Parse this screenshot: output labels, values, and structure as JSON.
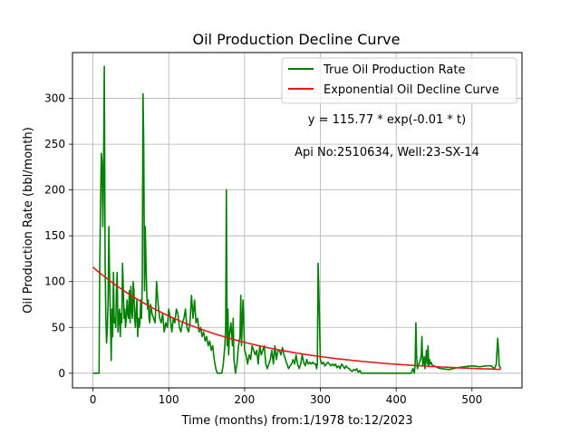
{
  "chart_data": {
    "type": "line",
    "title": "Oil Production Decline Curve",
    "xlabel": "Time (months) from:1/1978 to:12/2023",
    "ylabel": "Oil Production Rate (bbl/month)",
    "xlim": [
      -27,
      566
    ],
    "ylim": [
      -16,
      350
    ],
    "xticks": [
      0,
      100,
      200,
      300,
      400,
      500
    ],
    "yticks": [
      0,
      50,
      100,
      150,
      200,
      250,
      300
    ],
    "grid": true,
    "legend_position": "upper-right",
    "annotations": [
      "y = 115.77 * exp(-0.01 * t)",
      "Api No:2510634, Well:23-SX-14"
    ],
    "series": [
      {
        "name": "True Oil Production Rate",
        "color": "#008000",
        "x": [
          0,
          3,
          6,
          8,
          9,
          10,
          11,
          12,
          13,
          14,
          15,
          16,
          17,
          18,
          19,
          20,
          21,
          22,
          23,
          24,
          25,
          26,
          27,
          28,
          29,
          30,
          31,
          32,
          33,
          34,
          35,
          36,
          37,
          38,
          39,
          40,
          41,
          42,
          43,
          44,
          45,
          46,
          47,
          48,
          49,
          50,
          51,
          52,
          53,
          54,
          55,
          56,
          57,
          58,
          59,
          60,
          61,
          62,
          63,
          64,
          65,
          66,
          67,
          68,
          69,
          70,
          71,
          72,
          73,
          74,
          75,
          76,
          77,
          78,
          80,
          82,
          84,
          86,
          88,
          90,
          92,
          94,
          96,
          98,
          100,
          102,
          104,
          106,
          108,
          110,
          112,
          114,
          116,
          118,
          120,
          122,
          124,
          126,
          128,
          130,
          132,
          134,
          136,
          138,
          140,
          142,
          144,
          146,
          148,
          150,
          152,
          154,
          156,
          158,
          160,
          162,
          164,
          166,
          168,
          170,
          172,
          174,
          175,
          176,
          177,
          178,
          179,
          180,
          182,
          184,
          185,
          186,
          188,
          190,
          192,
          194,
          195,
          196,
          197,
          198,
          200,
          202,
          204,
          206,
          208,
          210,
          212,
          214,
          216,
          218,
          220,
          222,
          224,
          226,
          228,
          230,
          232,
          234,
          236,
          238,
          240,
          242,
          244,
          246,
          248,
          250,
          252,
          254,
          256,
          258,
          260,
          262,
          264,
          266,
          268,
          270,
          272,
          274,
          276,
          278,
          280,
          282,
          284,
          286,
          288,
          290,
          292,
          294,
          295,
          296,
          297,
          298,
          300,
          302,
          304,
          306,
          308,
          310,
          312,
          314,
          316,
          318,
          320,
          322,
          324,
          326,
          328,
          330,
          332,
          334,
          336,
          338,
          340,
          342,
          344,
          346,
          348,
          350,
          352,
          354,
          356,
          358,
          360,
          362,
          364,
          366,
          368,
          370,
          380,
          390,
          400,
          410,
          420,
          422,
          424,
          425,
          426,
          427,
          428,
          430,
          432,
          433,
          434,
          435,
          436,
          437,
          438,
          440,
          441,
          442,
          443,
          444,
          445,
          446,
          447,
          448,
          450,
          455,
          460,
          470,
          480,
          490,
          500,
          510,
          520,
          525,
          530,
          532,
          534,
          535,
          536,
          538
        ],
        "y": [
          0,
          0,
          0,
          0,
          120,
          180,
          240,
          230,
          160,
          225,
          335,
          120,
          60,
          33,
          50,
          80,
          160,
          100,
          60,
          14,
          70,
          40,
          110,
          55,
          60,
          50,
          90,
          110,
          45,
          60,
          70,
          40,
          65,
          55,
          120,
          95,
          60,
          70,
          50,
          60,
          80,
          65,
          60,
          90,
          55,
          95,
          70,
          60,
          100,
          90,
          60,
          50,
          70,
          80,
          40,
          60,
          50,
          55,
          80,
          60,
          100,
          305,
          250,
          90,
          160,
          120,
          85,
          70,
          80,
          60,
          55,
          75,
          70,
          65,
          60,
          55,
          100,
          75,
          60,
          55,
          65,
          45,
          55,
          50,
          70,
          60,
          45,
          60,
          55,
          70,
          65,
          50,
          45,
          55,
          60,
          70,
          50,
          45,
          55,
          85,
          60,
          80,
          55,
          60,
          45,
          50,
          40,
          45,
          35,
          40,
          30,
          35,
          25,
          30,
          15,
          5,
          0,
          0,
          0,
          0,
          10,
          30,
          50,
          200,
          30,
          70,
          20,
          40,
          55,
          30,
          60,
          15,
          0,
          10,
          30,
          40,
          85,
          30,
          60,
          80,
          25,
          20,
          10,
          20,
          15,
          30,
          25,
          20,
          25,
          10,
          30,
          20,
          25,
          30,
          10,
          5,
          10,
          15,
          25,
          10,
          30,
          15,
          25,
          25,
          20,
          28,
          20,
          15,
          10,
          5,
          8,
          10,
          15,
          10,
          20,
          10,
          5,
          10,
          20,
          12,
          8,
          15,
          10,
          12,
          10,
          12,
          10,
          10,
          5,
          10,
          120,
          90,
          15,
          10,
          12,
          8,
          10,
          12,
          10,
          8,
          10,
          8,
          10,
          6,
          8,
          5,
          10,
          8,
          5,
          8,
          6,
          5,
          3,
          2,
          4,
          3,
          5,
          1,
          3,
          0,
          0,
          0,
          0,
          0,
          0,
          0,
          0,
          0,
          0,
          0,
          0,
          0,
          0,
          5,
          0,
          10,
          55,
          20,
          5,
          10,
          15,
          20,
          40,
          8,
          12,
          18,
          5,
          25,
          10,
          30,
          8,
          15,
          10,
          12,
          10,
          8,
          8,
          6,
          5,
          4,
          6,
          7,
          8,
          7,
          8,
          8,
          5,
          10,
          38,
          25,
          8,
          5
        ]
      },
      {
        "name": "Exponential Oil Decline Curve",
        "color": "#e31a1c",
        "model": {
          "a": 115.77,
          "b": 0.00617,
          "x_min": 0,
          "x_max": 538,
          "steps": 120
        }
      }
    ]
  }
}
